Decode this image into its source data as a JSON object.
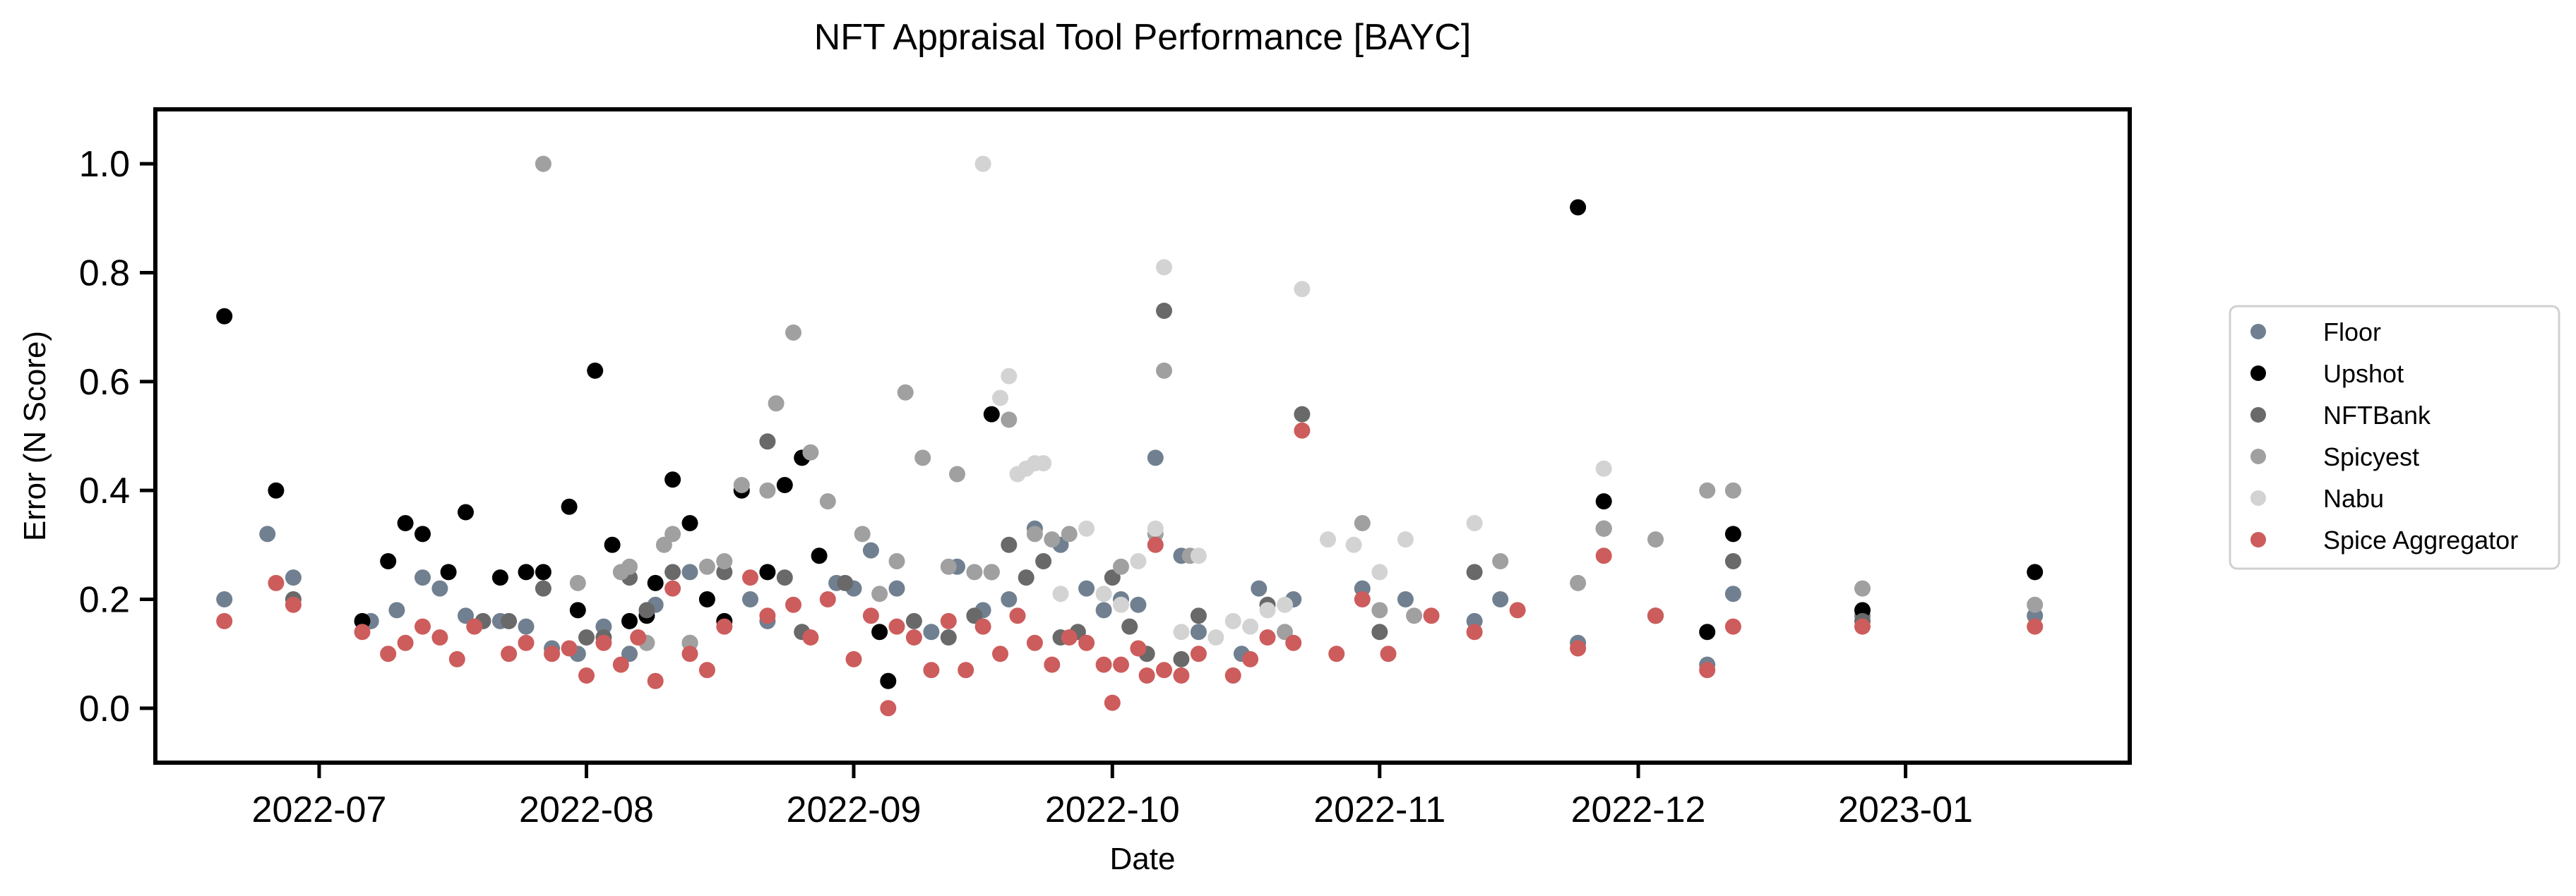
{
  "chart_data": {
    "type": "scatter",
    "title": "NFT Appraisal Tool Performance [BAYC]",
    "xlabel": "Date",
    "ylabel": "Error (N Score)",
    "xlim": [
      "2022-06-12",
      "2023-01-27"
    ],
    "ylim": [
      -0.1,
      1.1
    ],
    "x_ticks": [
      "2022-07",
      "2022-08",
      "2022-09",
      "2022-10",
      "2022-11",
      "2022-12",
      "2023-01"
    ],
    "y_ticks": [
      0.0,
      0.2,
      0.4,
      0.6,
      0.8,
      1.0
    ],
    "grid": false,
    "legend_position": "right",
    "series": [
      {
        "name": "Floor",
        "color": "#708090",
        "points": [
          [
            "2022-06-20",
            0.2
          ],
          [
            "2022-06-25",
            0.32
          ],
          [
            "2022-06-28",
            0.24
          ],
          [
            "2022-07-07",
            0.16
          ],
          [
            "2022-07-10",
            0.18
          ],
          [
            "2022-07-13",
            0.24
          ],
          [
            "2022-07-15",
            0.22
          ],
          [
            "2022-07-18",
            0.17
          ],
          [
            "2022-07-22",
            0.16
          ],
          [
            "2022-07-25",
            0.15
          ],
          [
            "2022-07-28",
            0.11
          ],
          [
            "2022-07-31",
            0.1
          ],
          [
            "2022-08-03",
            0.15
          ],
          [
            "2022-08-06",
            0.1
          ],
          [
            "2022-08-09",
            0.19
          ],
          [
            "2022-08-13",
            0.25
          ],
          [
            "2022-08-20",
            0.2
          ],
          [
            "2022-08-22",
            0.16
          ],
          [
            "2022-08-30",
            0.23
          ],
          [
            "2022-09-01",
            0.22
          ],
          [
            "2022-09-03",
            0.29
          ],
          [
            "2022-09-06",
            0.22
          ],
          [
            "2022-09-10",
            0.14
          ],
          [
            "2022-09-13",
            0.26
          ],
          [
            "2022-09-16",
            0.18
          ],
          [
            "2022-09-19",
            0.2
          ],
          [
            "2022-09-22",
            0.33
          ],
          [
            "2022-09-25",
            0.3
          ],
          [
            "2022-09-28",
            0.22
          ],
          [
            "2022-09-30",
            0.18
          ],
          [
            "2022-10-02",
            0.2
          ],
          [
            "2022-10-04",
            0.19
          ],
          [
            "2022-10-06",
            0.46
          ],
          [
            "2022-10-09",
            0.28
          ],
          [
            "2022-10-11",
            0.14
          ],
          [
            "2022-10-16",
            0.1
          ],
          [
            "2022-10-18",
            0.22
          ],
          [
            "2022-10-22",
            0.2
          ],
          [
            "2022-10-30",
            0.22
          ],
          [
            "2022-11-04",
            0.2
          ],
          [
            "2022-11-12",
            0.16
          ],
          [
            "2022-11-15",
            0.2
          ],
          [
            "2022-11-24",
            0.12
          ],
          [
            "2022-11-27",
            0.33
          ],
          [
            "2022-12-09",
            0.08
          ],
          [
            "2022-12-12",
            0.21
          ],
          [
            "2022-12-27",
            0.17
          ],
          [
            "2023-01-16",
            0.17
          ]
        ]
      },
      {
        "name": "Upshot",
        "color": "#000000",
        "points": [
          [
            "2022-06-20",
            0.72
          ],
          [
            "2022-06-26",
            0.4
          ],
          [
            "2022-07-06",
            0.16
          ],
          [
            "2022-07-09",
            0.27
          ],
          [
            "2022-07-11",
            0.34
          ],
          [
            "2022-07-13",
            0.32
          ],
          [
            "2022-07-16",
            0.25
          ],
          [
            "2022-07-18",
            0.36
          ],
          [
            "2022-07-22",
            0.24
          ],
          [
            "2022-07-25",
            0.25
          ],
          [
            "2022-07-27",
            0.25
          ],
          [
            "2022-07-30",
            0.37
          ],
          [
            "2022-07-31",
            0.18
          ],
          [
            "2022-08-02",
            0.62
          ],
          [
            "2022-08-04",
            0.3
          ],
          [
            "2022-08-06",
            0.16
          ],
          [
            "2022-08-08",
            0.17
          ],
          [
            "2022-08-09",
            0.23
          ],
          [
            "2022-08-11",
            0.42
          ],
          [
            "2022-08-13",
            0.34
          ],
          [
            "2022-08-15",
            0.2
          ],
          [
            "2022-08-17",
            0.16
          ],
          [
            "2022-08-19",
            0.4
          ],
          [
            "2022-08-22",
            0.25
          ],
          [
            "2022-08-24",
            0.41
          ],
          [
            "2022-08-26",
            0.46
          ],
          [
            "2022-08-28",
            0.28
          ],
          [
            "2022-09-04",
            0.14
          ],
          [
            "2022-09-05",
            0.05
          ],
          [
            "2022-09-17",
            0.54
          ],
          [
            "2022-11-24",
            0.92
          ],
          [
            "2022-11-27",
            0.38
          ],
          [
            "2022-12-03",
            0.17
          ],
          [
            "2022-12-09",
            0.14
          ],
          [
            "2022-12-12",
            0.32
          ],
          [
            "2022-12-27",
            0.18
          ],
          [
            "2023-01-16",
            0.25
          ]
        ]
      },
      {
        "name": "NFTBank",
        "color": "#696969",
        "points": [
          [
            "2022-06-28",
            0.2
          ],
          [
            "2022-07-20",
            0.16
          ],
          [
            "2022-07-23",
            0.16
          ],
          [
            "2022-07-27",
            0.22
          ],
          [
            "2022-08-01",
            0.13
          ],
          [
            "2022-08-03",
            0.13
          ],
          [
            "2022-08-06",
            0.24
          ],
          [
            "2022-08-08",
            0.18
          ],
          [
            "2022-08-11",
            0.25
          ],
          [
            "2022-08-13",
            0.12
          ],
          [
            "2022-08-17",
            0.25
          ],
          [
            "2022-08-22",
            0.49
          ],
          [
            "2022-08-24",
            0.24
          ],
          [
            "2022-08-26",
            0.14
          ],
          [
            "2022-08-31",
            0.23
          ],
          [
            "2022-09-08",
            0.16
          ],
          [
            "2022-09-12",
            0.13
          ],
          [
            "2022-09-15",
            0.17
          ],
          [
            "2022-09-17",
            0.25
          ],
          [
            "2022-09-19",
            0.3
          ],
          [
            "2022-09-21",
            0.24
          ],
          [
            "2022-09-23",
            0.27
          ],
          [
            "2022-09-25",
            0.13
          ],
          [
            "2022-09-27",
            0.14
          ],
          [
            "2022-10-01",
            0.24
          ],
          [
            "2022-10-03",
            0.15
          ],
          [
            "2022-10-05",
            0.1
          ],
          [
            "2022-10-07",
            0.73
          ],
          [
            "2022-10-09",
            0.09
          ],
          [
            "2022-10-11",
            0.17
          ],
          [
            "2022-10-19",
            0.19
          ],
          [
            "2022-10-23",
            0.54
          ],
          [
            "2022-11-01",
            0.14
          ],
          [
            "2022-11-12",
            0.25
          ],
          [
            "2022-11-27",
            0.33
          ],
          [
            "2022-12-03",
            0.17
          ],
          [
            "2022-12-12",
            0.27
          ],
          [
            "2022-12-27",
            0.16
          ]
        ]
      },
      {
        "name": "Spicyest",
        "color": "#a0a0a0",
        "points": [
          [
            "2022-07-27",
            1.0
          ],
          [
            "2022-07-31",
            0.23
          ],
          [
            "2022-08-05",
            0.25
          ],
          [
            "2022-08-06",
            0.26
          ],
          [
            "2022-08-08",
            0.12
          ],
          [
            "2022-08-10",
            0.3
          ],
          [
            "2022-08-11",
            0.32
          ],
          [
            "2022-08-13",
            0.12
          ],
          [
            "2022-08-15",
            0.26
          ],
          [
            "2022-08-17",
            0.27
          ],
          [
            "2022-08-19",
            0.41
          ],
          [
            "2022-08-22",
            0.4
          ],
          [
            "2022-08-23",
            0.56
          ],
          [
            "2022-08-25",
            0.69
          ],
          [
            "2022-08-27",
            0.47
          ],
          [
            "2022-08-29",
            0.38
          ],
          [
            "2022-09-02",
            0.32
          ],
          [
            "2022-09-04",
            0.21
          ],
          [
            "2022-09-06",
            0.27
          ],
          [
            "2022-09-07",
            0.58
          ],
          [
            "2022-09-09",
            0.46
          ],
          [
            "2022-09-12",
            0.26
          ],
          [
            "2022-09-13",
            0.43
          ],
          [
            "2022-09-15",
            0.25
          ],
          [
            "2022-09-17",
            0.25
          ],
          [
            "2022-09-19",
            0.53
          ],
          [
            "2022-09-22",
            0.32
          ],
          [
            "2022-09-24",
            0.31
          ],
          [
            "2022-09-26",
            0.32
          ],
          [
            "2022-10-02",
            0.26
          ],
          [
            "2022-10-06",
            0.32
          ],
          [
            "2022-10-07",
            0.62
          ],
          [
            "2022-10-10",
            0.28
          ],
          [
            "2022-10-21",
            0.14
          ],
          [
            "2022-10-30",
            0.34
          ],
          [
            "2022-11-01",
            0.18
          ],
          [
            "2022-11-05",
            0.17
          ],
          [
            "2022-11-15",
            0.27
          ],
          [
            "2022-11-24",
            0.23
          ],
          [
            "2022-11-27",
            0.33
          ],
          [
            "2022-12-03",
            0.31
          ],
          [
            "2022-12-09",
            0.4
          ],
          [
            "2022-12-12",
            0.4
          ],
          [
            "2022-12-27",
            0.22
          ],
          [
            "2023-01-16",
            0.19
          ]
        ]
      },
      {
        "name": "Nabu",
        "color": "#d3d3d3",
        "points": [
          [
            "2022-09-16",
            1.0
          ],
          [
            "2022-09-18",
            0.57
          ],
          [
            "2022-09-19",
            0.61
          ],
          [
            "2022-09-20",
            0.43
          ],
          [
            "2022-09-21",
            0.44
          ],
          [
            "2022-09-22",
            0.45
          ],
          [
            "2022-09-23",
            0.45
          ],
          [
            "2022-09-25",
            0.21
          ],
          [
            "2022-09-28",
            0.33
          ],
          [
            "2022-09-30",
            0.21
          ],
          [
            "2022-10-02",
            0.19
          ],
          [
            "2022-10-04",
            0.27
          ],
          [
            "2022-10-06",
            0.33
          ],
          [
            "2022-10-07",
            0.81
          ],
          [
            "2022-10-09",
            0.14
          ],
          [
            "2022-10-11",
            0.28
          ],
          [
            "2022-10-13",
            0.13
          ],
          [
            "2022-10-15",
            0.16
          ],
          [
            "2022-10-17",
            0.15
          ],
          [
            "2022-10-19",
            0.18
          ],
          [
            "2022-10-21",
            0.19
          ],
          [
            "2022-10-23",
            0.77
          ],
          [
            "2022-10-26",
            0.31
          ],
          [
            "2022-10-29",
            0.3
          ],
          [
            "2022-11-01",
            0.25
          ],
          [
            "2022-11-04",
            0.31
          ],
          [
            "2022-11-12",
            0.34
          ],
          [
            "2022-11-27",
            0.44
          ]
        ]
      },
      {
        "name": "Spice Aggregator",
        "color": "#cd5c5c",
        "points": [
          [
            "2022-06-20",
            0.16
          ],
          [
            "2022-06-26",
            0.23
          ],
          [
            "2022-06-28",
            0.19
          ],
          [
            "2022-07-06",
            0.14
          ],
          [
            "2022-07-09",
            0.1
          ],
          [
            "2022-07-11",
            0.12
          ],
          [
            "2022-07-13",
            0.15
          ],
          [
            "2022-07-15",
            0.13
          ],
          [
            "2022-07-17",
            0.09
          ],
          [
            "2022-07-19",
            0.15
          ],
          [
            "2022-07-23",
            0.1
          ],
          [
            "2022-07-25",
            0.12
          ],
          [
            "2022-07-28",
            0.1
          ],
          [
            "2022-07-30",
            0.11
          ],
          [
            "2022-08-01",
            0.06
          ],
          [
            "2022-08-03",
            0.12
          ],
          [
            "2022-08-05",
            0.08
          ],
          [
            "2022-08-07",
            0.13
          ],
          [
            "2022-08-09",
            0.05
          ],
          [
            "2022-08-11",
            0.22
          ],
          [
            "2022-08-13",
            0.1
          ],
          [
            "2022-08-15",
            0.07
          ],
          [
            "2022-08-17",
            0.15
          ],
          [
            "2022-08-20",
            0.24
          ],
          [
            "2022-08-22",
            0.17
          ],
          [
            "2022-08-25",
            0.19
          ],
          [
            "2022-08-27",
            0.13
          ],
          [
            "2022-08-29",
            0.2
          ],
          [
            "2022-09-01",
            0.09
          ],
          [
            "2022-09-03",
            0.17
          ],
          [
            "2022-09-05",
            0.0
          ],
          [
            "2022-09-06",
            0.15
          ],
          [
            "2022-09-08",
            0.13
          ],
          [
            "2022-09-10",
            0.07
          ],
          [
            "2022-09-12",
            0.16
          ],
          [
            "2022-09-14",
            0.07
          ],
          [
            "2022-09-16",
            0.15
          ],
          [
            "2022-09-18",
            0.1
          ],
          [
            "2022-09-20",
            0.17
          ],
          [
            "2022-09-22",
            0.12
          ],
          [
            "2022-09-24",
            0.08
          ],
          [
            "2022-09-26",
            0.13
          ],
          [
            "2022-09-28",
            0.12
          ],
          [
            "2022-09-30",
            0.08
          ],
          [
            "2022-10-01",
            0.01
          ],
          [
            "2022-10-02",
            0.08
          ],
          [
            "2022-10-04",
            0.11
          ],
          [
            "2022-10-05",
            0.06
          ],
          [
            "2022-10-06",
            0.3
          ],
          [
            "2022-10-07",
            0.07
          ],
          [
            "2022-10-09",
            0.06
          ],
          [
            "2022-10-11",
            0.1
          ],
          [
            "2022-10-15",
            0.06
          ],
          [
            "2022-10-17",
            0.09
          ],
          [
            "2022-10-19",
            0.13
          ],
          [
            "2022-10-22",
            0.12
          ],
          [
            "2022-10-23",
            0.51
          ],
          [
            "2022-10-27",
            0.1
          ],
          [
            "2022-10-30",
            0.2
          ],
          [
            "2022-11-02",
            0.1
          ],
          [
            "2022-11-07",
            0.17
          ],
          [
            "2022-11-12",
            0.14
          ],
          [
            "2022-11-17",
            0.18
          ],
          [
            "2022-11-24",
            0.11
          ],
          [
            "2022-11-27",
            0.28
          ],
          [
            "2022-12-03",
            0.17
          ],
          [
            "2022-12-09",
            0.07
          ],
          [
            "2022-12-12",
            0.15
          ],
          [
            "2022-12-27",
            0.15
          ],
          [
            "2023-01-16",
            0.15
          ]
        ]
      }
    ]
  }
}
